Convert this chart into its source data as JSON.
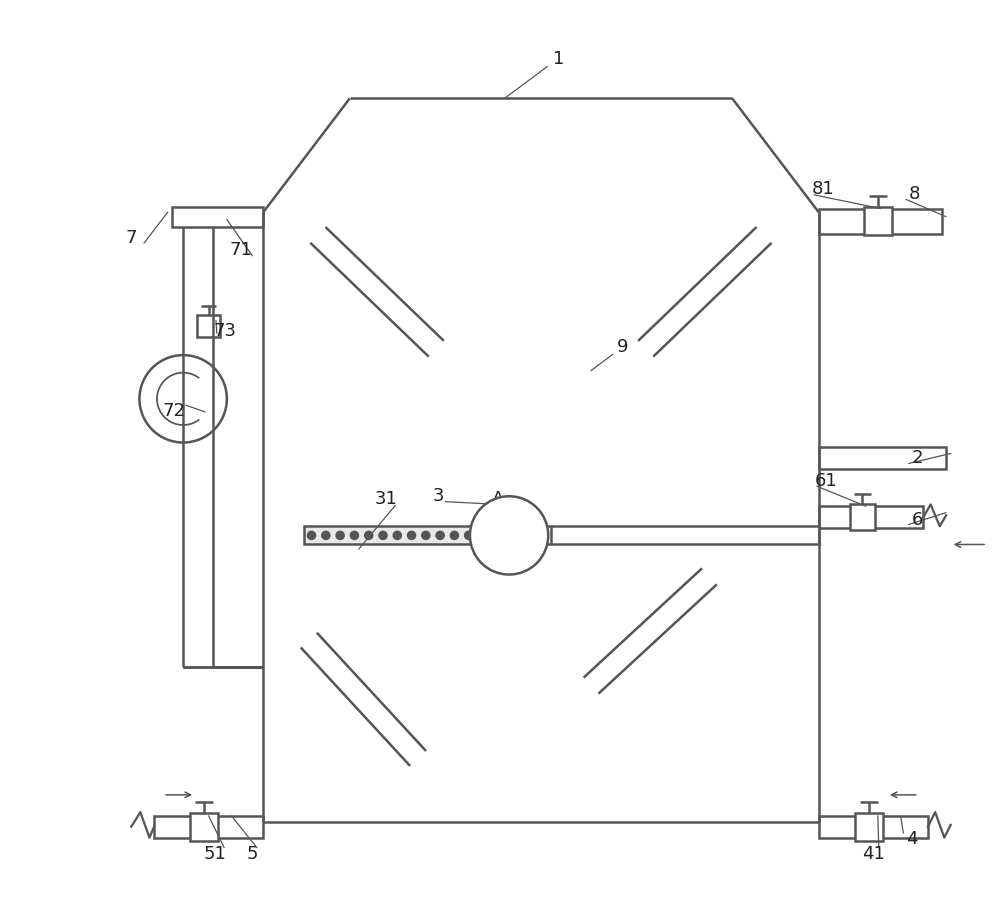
{
  "bg_color": "#ffffff",
  "lc": "#555555",
  "lw": 1.8,
  "figsize": [
    10.0,
    9.16
  ],
  "tank": {
    "L": 0.24,
    "R": 0.85,
    "B": 0.1,
    "T": 0.77,
    "RL": 0.335,
    "RR": 0.755,
    "RT": 0.895
  },
  "label_fontsize": 13
}
